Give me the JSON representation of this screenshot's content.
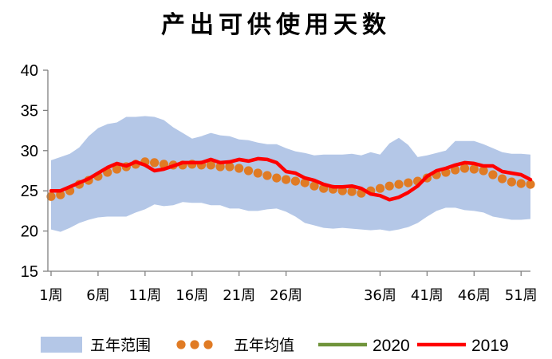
{
  "chart_data": {
    "type": "line",
    "title": "产出可供使用天数",
    "xlabel": "",
    "ylabel": "",
    "ylim": [
      15,
      40
    ],
    "yticks": [
      15,
      20,
      25,
      30,
      35,
      40
    ],
    "x_tick_labels": [
      {
        "week": 1,
        "label": "1周"
      },
      {
        "week": 6,
        "label": "6周"
      },
      {
        "week": 11,
        "label": "11周"
      },
      {
        "week": 16,
        "label": "16周"
      },
      {
        "week": 21,
        "label": "21周"
      },
      {
        "week": 26,
        "label": "26周"
      },
      {
        "week": 36,
        "label": "36周"
      },
      {
        "week": 41,
        "label": "41周"
      },
      {
        "week": 46,
        "label": "46周"
      },
      {
        "week": 51,
        "label": "51周"
      }
    ],
    "weeks": [
      1,
      2,
      3,
      4,
      5,
      6,
      7,
      8,
      9,
      10,
      11,
      12,
      13,
      14,
      15,
      16,
      17,
      18,
      19,
      20,
      21,
      22,
      23,
      24,
      25,
      26,
      27,
      28,
      29,
      30,
      31,
      32,
      33,
      34,
      35,
      36,
      37,
      38,
      39,
      40,
      41,
      42,
      43,
      44,
      45,
      46,
      47,
      48,
      49,
      50,
      51,
      52
    ],
    "five_year_range": {
      "name": "五年范围",
      "color": "#b4c7e7",
      "upper": [
        28.8,
        29.2,
        29.6,
        30.4,
        31.8,
        32.8,
        33.3,
        33.5,
        34.2,
        34.2,
        34.3,
        34.2,
        33.8,
        32.9,
        32.2,
        31.5,
        31.8,
        32.2,
        31.9,
        31.8,
        31.4,
        31.3,
        31.0,
        30.8,
        30.8,
        30.3,
        29.9,
        29.7,
        29.4,
        29.5,
        29.5,
        29.5,
        29.6,
        29.4,
        29.8,
        29.5,
        30.9,
        31.6,
        30.7,
        29.2,
        29.4,
        29.7,
        30.0,
        31.2,
        31.2,
        31.2,
        30.8,
        30.3,
        29.8,
        29.6,
        29.6,
        29.5
      ],
      "lower": [
        20.2,
        19.9,
        20.4,
        21.0,
        21.4,
        21.7,
        21.8,
        21.8,
        21.8,
        22.3,
        22.7,
        23.3,
        23.1,
        23.2,
        23.6,
        23.5,
        23.5,
        23.2,
        23.2,
        22.8,
        22.8,
        22.5,
        22.5,
        22.7,
        22.8,
        22.4,
        21.8,
        21.0,
        20.7,
        20.4,
        20.3,
        20.4,
        20.3,
        20.2,
        20.1,
        20.2,
        20.0,
        20.2,
        20.5,
        21.0,
        21.8,
        22.5,
        22.9,
        22.9,
        22.6,
        22.5,
        22.3,
        21.8,
        21.6,
        21.4,
        21.4,
        21.5
      ]
    },
    "series": [
      {
        "name": "五年均值",
        "color": "#e07b24",
        "values": [
          24.3,
          24.5,
          25.0,
          25.8,
          26.3,
          26.8,
          27.3,
          27.7,
          28.0,
          28.3,
          28.6,
          28.5,
          28.3,
          28.2,
          28.2,
          28.3,
          28.2,
          28.2,
          28.0,
          28.0,
          27.8,
          27.5,
          27.2,
          26.9,
          26.6,
          26.4,
          26.2,
          26.0,
          25.6,
          25.3,
          25.2,
          25.0,
          24.9,
          24.7,
          25.0,
          25.3,
          25.6,
          25.8,
          26.0,
          26.2,
          26.6,
          27.0,
          27.3,
          27.6,
          27.8,
          27.7,
          27.5,
          27.0,
          26.5,
          26.1,
          25.9,
          25.8
        ]
      },
      {
        "name": "2020",
        "color": "#70943b",
        "values": []
      },
      {
        "name": "2019",
        "color": "#ff0000",
        "values": [
          25.0,
          25.0,
          25.5,
          26.0,
          26.5,
          27.2,
          27.9,
          28.4,
          28.1,
          28.6,
          28.2,
          27.5,
          27.7,
          28.1,
          28.5,
          28.5,
          28.5,
          28.9,
          28.5,
          28.6,
          28.9,
          28.7,
          29.0,
          28.9,
          28.5,
          27.4,
          27.2,
          26.6,
          26.3,
          25.8,
          25.5,
          25.5,
          25.6,
          25.3,
          24.6,
          24.4,
          23.9,
          24.2,
          24.8,
          25.6,
          26.8,
          27.5,
          27.8,
          28.2,
          28.5,
          28.4,
          28.1,
          28.1,
          27.4,
          27.2,
          27.0,
          26.4
        ]
      }
    ],
    "legend": {
      "position": "bottom"
    },
    "grid": false
  }
}
